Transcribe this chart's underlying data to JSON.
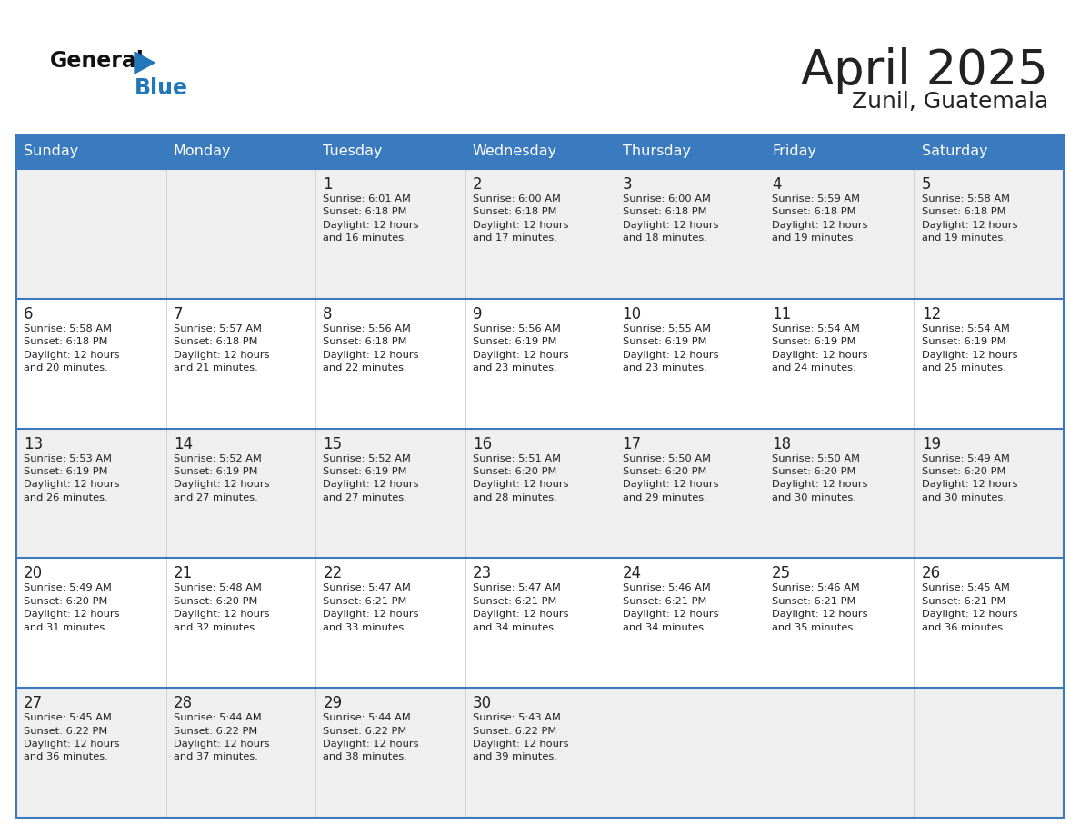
{
  "title": "April 2025",
  "subtitle": "Zunil, Guatemala",
  "days_of_week": [
    "Sunday",
    "Monday",
    "Tuesday",
    "Wednesday",
    "Thursday",
    "Friday",
    "Saturday"
  ],
  "header_bg": "#3a7abf",
  "header_text": "#ffffff",
  "cell_bg_odd": "#efefef",
  "cell_bg_even": "#ffffff",
  "border_color": "#3a7abf",
  "day_number_color": "#222222",
  "text_color": "#222222",
  "title_color": "#222222",
  "logo_general_color": "#111111",
  "logo_blue_color": "#2277bb",
  "weeks": [
    [
      {
        "day": null,
        "text": ""
      },
      {
        "day": null,
        "text": ""
      },
      {
        "day": 1,
        "text": "Sunrise: 6:01 AM\nSunset: 6:18 PM\nDaylight: 12 hours\nand 16 minutes."
      },
      {
        "day": 2,
        "text": "Sunrise: 6:00 AM\nSunset: 6:18 PM\nDaylight: 12 hours\nand 17 minutes."
      },
      {
        "day": 3,
        "text": "Sunrise: 6:00 AM\nSunset: 6:18 PM\nDaylight: 12 hours\nand 18 minutes."
      },
      {
        "day": 4,
        "text": "Sunrise: 5:59 AM\nSunset: 6:18 PM\nDaylight: 12 hours\nand 19 minutes."
      },
      {
        "day": 5,
        "text": "Sunrise: 5:58 AM\nSunset: 6:18 PM\nDaylight: 12 hours\nand 19 minutes."
      }
    ],
    [
      {
        "day": 6,
        "text": "Sunrise: 5:58 AM\nSunset: 6:18 PM\nDaylight: 12 hours\nand 20 minutes."
      },
      {
        "day": 7,
        "text": "Sunrise: 5:57 AM\nSunset: 6:18 PM\nDaylight: 12 hours\nand 21 minutes."
      },
      {
        "day": 8,
        "text": "Sunrise: 5:56 AM\nSunset: 6:18 PM\nDaylight: 12 hours\nand 22 minutes."
      },
      {
        "day": 9,
        "text": "Sunrise: 5:56 AM\nSunset: 6:19 PM\nDaylight: 12 hours\nand 23 minutes."
      },
      {
        "day": 10,
        "text": "Sunrise: 5:55 AM\nSunset: 6:19 PM\nDaylight: 12 hours\nand 23 minutes."
      },
      {
        "day": 11,
        "text": "Sunrise: 5:54 AM\nSunset: 6:19 PM\nDaylight: 12 hours\nand 24 minutes."
      },
      {
        "day": 12,
        "text": "Sunrise: 5:54 AM\nSunset: 6:19 PM\nDaylight: 12 hours\nand 25 minutes."
      }
    ],
    [
      {
        "day": 13,
        "text": "Sunrise: 5:53 AM\nSunset: 6:19 PM\nDaylight: 12 hours\nand 26 minutes."
      },
      {
        "day": 14,
        "text": "Sunrise: 5:52 AM\nSunset: 6:19 PM\nDaylight: 12 hours\nand 27 minutes."
      },
      {
        "day": 15,
        "text": "Sunrise: 5:52 AM\nSunset: 6:19 PM\nDaylight: 12 hours\nand 27 minutes."
      },
      {
        "day": 16,
        "text": "Sunrise: 5:51 AM\nSunset: 6:20 PM\nDaylight: 12 hours\nand 28 minutes."
      },
      {
        "day": 17,
        "text": "Sunrise: 5:50 AM\nSunset: 6:20 PM\nDaylight: 12 hours\nand 29 minutes."
      },
      {
        "day": 18,
        "text": "Sunrise: 5:50 AM\nSunset: 6:20 PM\nDaylight: 12 hours\nand 30 minutes."
      },
      {
        "day": 19,
        "text": "Sunrise: 5:49 AM\nSunset: 6:20 PM\nDaylight: 12 hours\nand 30 minutes."
      }
    ],
    [
      {
        "day": 20,
        "text": "Sunrise: 5:49 AM\nSunset: 6:20 PM\nDaylight: 12 hours\nand 31 minutes."
      },
      {
        "day": 21,
        "text": "Sunrise: 5:48 AM\nSunset: 6:20 PM\nDaylight: 12 hours\nand 32 minutes."
      },
      {
        "day": 22,
        "text": "Sunrise: 5:47 AM\nSunset: 6:21 PM\nDaylight: 12 hours\nand 33 minutes."
      },
      {
        "day": 23,
        "text": "Sunrise: 5:47 AM\nSunset: 6:21 PM\nDaylight: 12 hours\nand 34 minutes."
      },
      {
        "day": 24,
        "text": "Sunrise: 5:46 AM\nSunset: 6:21 PM\nDaylight: 12 hours\nand 34 minutes."
      },
      {
        "day": 25,
        "text": "Sunrise: 5:46 AM\nSunset: 6:21 PM\nDaylight: 12 hours\nand 35 minutes."
      },
      {
        "day": 26,
        "text": "Sunrise: 5:45 AM\nSunset: 6:21 PM\nDaylight: 12 hours\nand 36 minutes."
      }
    ],
    [
      {
        "day": 27,
        "text": "Sunrise: 5:45 AM\nSunset: 6:22 PM\nDaylight: 12 hours\nand 36 minutes."
      },
      {
        "day": 28,
        "text": "Sunrise: 5:44 AM\nSunset: 6:22 PM\nDaylight: 12 hours\nand 37 minutes."
      },
      {
        "day": 29,
        "text": "Sunrise: 5:44 AM\nSunset: 6:22 PM\nDaylight: 12 hours\nand 38 minutes."
      },
      {
        "day": 30,
        "text": "Sunrise: 5:43 AM\nSunset: 6:22 PM\nDaylight: 12 hours\nand 39 minutes."
      },
      {
        "day": null,
        "text": ""
      },
      {
        "day": null,
        "text": ""
      },
      {
        "day": null,
        "text": ""
      }
    ]
  ]
}
